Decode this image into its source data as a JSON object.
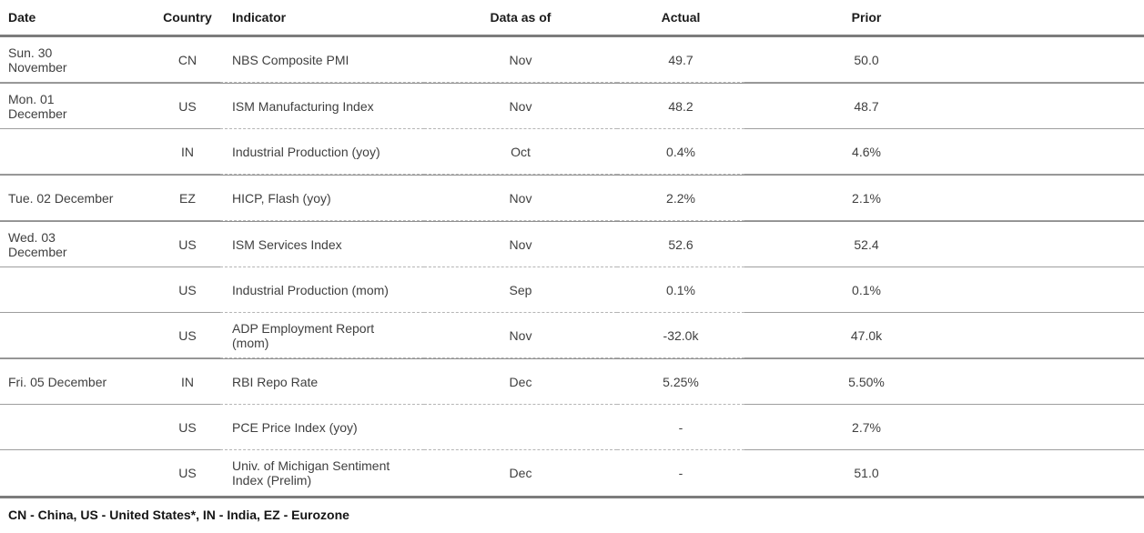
{
  "table": {
    "columns": [
      "Date",
      "Country",
      "Indicator",
      "Data as of",
      "Actual",
      "Prior"
    ],
    "rows": [
      {
        "date": "Sun. 30\nNovember",
        "country": "CN",
        "indicator": "NBS Composite PMI",
        "data_as_of": "Nov",
        "actual": "49.7",
        "prior": "50.0",
        "group_start": true
      },
      {
        "date": "Mon. 01\nDecember",
        "country": "US",
        "indicator": "ISM Manufacturing Index",
        "data_as_of": "Nov",
        "actual": "48.2",
        "prior": "48.7",
        "group_start": true
      },
      {
        "date": "",
        "country": "IN",
        "indicator": "Industrial Production (yoy)",
        "data_as_of": "Oct",
        "actual": "0.4%",
        "prior": "4.6%",
        "group_start": false
      },
      {
        "date": "Tue. 02 December",
        "country": "EZ",
        "indicator": "HICP, Flash (yoy)",
        "data_as_of": "Nov",
        "actual": "2.2%",
        "prior": "2.1%",
        "group_start": true
      },
      {
        "date": "Wed. 03\nDecember",
        "country": "US",
        "indicator": "ISM Services Index",
        "data_as_of": "Nov",
        "actual": "52.6",
        "prior": "52.4",
        "group_start": true
      },
      {
        "date": "",
        "country": "US",
        "indicator": "Industrial Production (mom)",
        "data_as_of": "Sep",
        "actual": "0.1%",
        "prior": "0.1%",
        "group_start": false
      },
      {
        "date": "",
        "country": "US",
        "indicator": "ADP Employment Report\n(mom)",
        "data_as_of": "Nov",
        "actual": "-32.0k",
        "prior": "47.0k",
        "group_start": false
      },
      {
        "date": "Fri. 05 December",
        "country": "IN",
        "indicator": "RBI Repo Rate",
        "data_as_of": "Dec",
        "actual": "5.25%",
        "prior": "5.50%",
        "group_start": true
      },
      {
        "date": "",
        "country": "US",
        "indicator": "PCE Price Index (yoy)",
        "data_as_of": "",
        "actual": "-",
        "prior": "2.7%",
        "group_start": false
      },
      {
        "date": "",
        "country": "US",
        "indicator": "Univ. of Michigan Sentiment\nIndex (Prelim)",
        "data_as_of": "Dec",
        "actual": "-",
        "prior": "51.0",
        "group_start": false
      }
    ]
  },
  "footnote": "CN - China, US - United States*, IN - India, EZ - Eurozone",
  "colors": {
    "heavy_rule": "#7c7c7c",
    "solid_rule": "#9e9e9e",
    "dashed_rule": "#b5b5b5",
    "body_text": "#3f3f3f",
    "heading_text": "#1c1c1c"
  }
}
